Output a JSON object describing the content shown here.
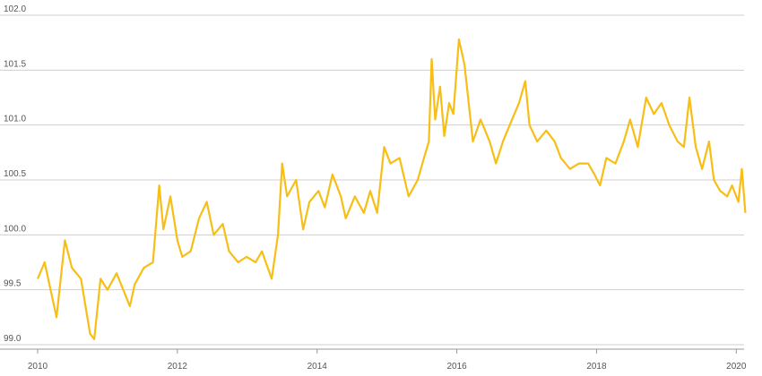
{
  "chart_data": {
    "type": "line",
    "color": "#f7be16",
    "grid": true,
    "x": [
      2010,
      2010.1,
      2010.27,
      2010.39,
      2010.49,
      2010.62,
      2010.75,
      2010.81,
      2010.9,
      2011.0,
      2011.13,
      2011.32,
      2011.39,
      2011.52,
      2011.65,
      2011.74,
      2011.8,
      2011.9,
      2012.0,
      2012.07,
      2012.19,
      2012.31,
      2012.42,
      2012.52,
      2012.65,
      2012.74,
      2012.87,
      2012.99,
      2013.12,
      2013.21,
      2013.35,
      2013.44,
      2013.5,
      2013.57,
      2013.7,
      2013.8,
      2013.89,
      2014.02,
      2014.11,
      2014.22,
      2014.34,
      2014.41,
      2014.54,
      2014.67,
      2014.76,
      2014.86,
      2014.96,
      2015.05,
      2015.18,
      2015.31,
      2015.44,
      2015.53,
      2015.6,
      2015.64,
      2015.69,
      2015.76,
      2015.82,
      2015.89,
      2015.95,
      2016.03,
      2016.11,
      2016.17,
      2016.23,
      2016.34,
      2016.47,
      2016.56,
      2016.66,
      2016.79,
      2016.89,
      2016.98,
      2017.04,
      2017.15,
      2017.28,
      2017.4,
      2017.49,
      2017.62,
      2017.75,
      2017.88,
      2017.97,
      2018.05,
      2018.14,
      2018.27,
      2018.39,
      2018.48,
      2018.59,
      2018.71,
      2018.82,
      2018.93,
      2019.04,
      2019.16,
      2019.25,
      2019.33,
      2019.42,
      2019.51,
      2019.61,
      2019.68,
      2019.77,
      2019.87,
      2019.94,
      2020.03,
      2020.08,
      2020.13
    ],
    "values": [
      99.6,
      99.75,
      99.25,
      99.95,
      99.7,
      99.6,
      99.1,
      99.05,
      99.6,
      99.5,
      99.65,
      99.35,
      99.55,
      99.7,
      99.75,
      100.45,
      100.05,
      100.35,
      99.95,
      99.8,
      99.85,
      100.15,
      100.3,
      100.0,
      100.1,
      99.85,
      99.75,
      99.8,
      99.75,
      99.85,
      99.6,
      100.0,
      100.65,
      100.35,
      100.5,
      100.05,
      100.3,
      100.4,
      100.25,
      100.55,
      100.35,
      100.15,
      100.35,
      100.2,
      100.4,
      100.2,
      100.8,
      100.65,
      100.7,
      100.35,
      100.5,
      100.7,
      100.85,
      101.6,
      101.05,
      101.35,
      100.9,
      101.2,
      101.1,
      101.78,
      101.55,
      101.2,
      100.85,
      101.05,
      100.85,
      100.65,
      100.85,
      101.05,
      101.2,
      101.4,
      101.0,
      100.85,
      100.95,
      100.85,
      100.7,
      100.6,
      100.65,
      100.65,
      100.55,
      100.45,
      100.7,
      100.65,
      100.85,
      101.05,
      100.8,
      101.25,
      101.1,
      101.2,
      101.0,
      100.85,
      100.8,
      101.25,
      100.8,
      100.6,
      100.85,
      100.5,
      100.4,
      100.35,
      100.45,
      100.3,
      100.6,
      100.2
    ],
    "xlim": [
      2010,
      2020.15
    ],
    "xticks": [
      2010,
      2012,
      2014,
      2016,
      2018,
      2020
    ],
    "ylim": [
      99,
      102
    ],
    "yticks": [
      {
        "value": 99,
        "label": "99.0"
      },
      99.5,
      {
        "value": 100,
        "label": "100.0"
      },
      100.5,
      {
        "value": 101,
        "label": "101.0"
      },
      101.5,
      {
        "value": 102,
        "label": "102.0"
      }
    ]
  }
}
